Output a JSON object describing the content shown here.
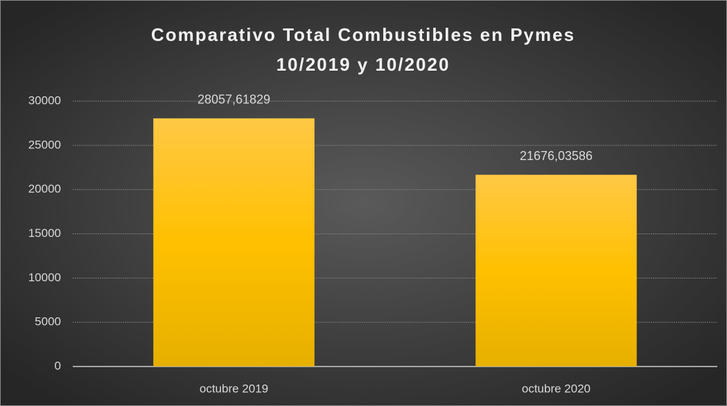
{
  "chart_data": {
    "type": "bar",
    "title": [
      "Comparativo Total Combustibles en Pymes",
      "10/2019 y 10/2020"
    ],
    "categories": [
      "octubre 2019",
      "octubre 2020"
    ],
    "values": [
      28057.61829,
      21676.03586
    ],
    "value_labels": [
      "28057,61829",
      "21676,03586"
    ],
    "color": "#ffc000",
    "ylim": [
      0,
      30000
    ],
    "yticks": [
      0,
      5000,
      10000,
      15000,
      20000,
      25000,
      30000
    ],
    "grid": true
  }
}
